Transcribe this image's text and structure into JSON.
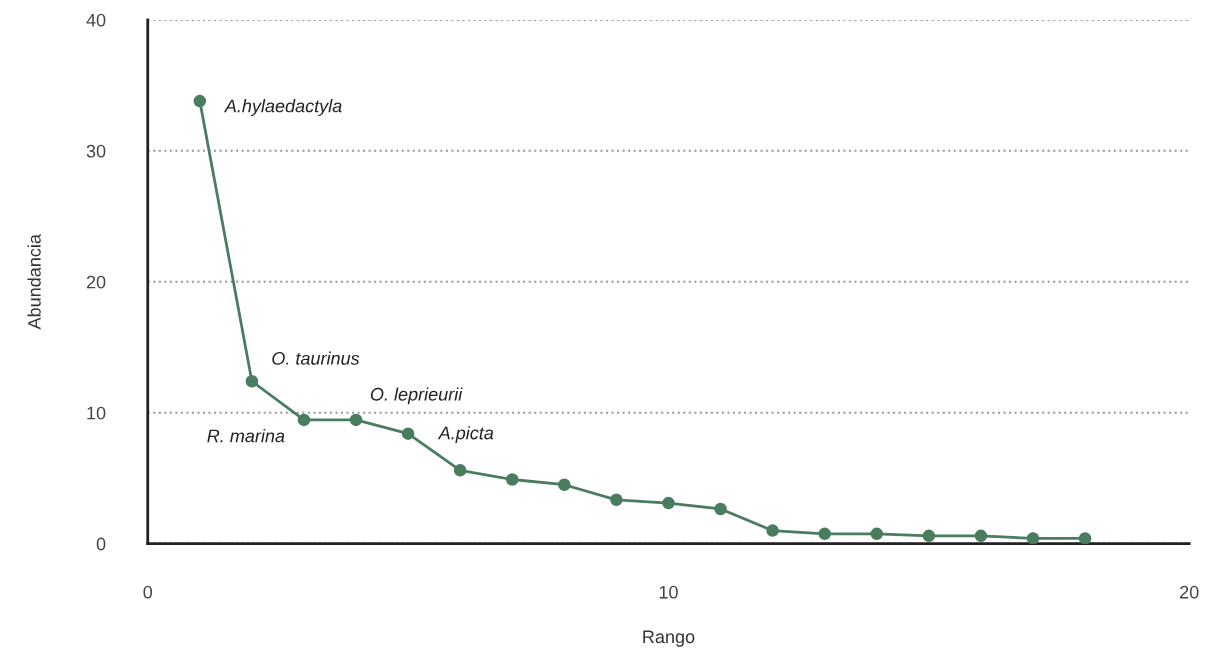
{
  "chart_data": {
    "type": "line",
    "xlabel": "Rango",
    "ylabel": "Abundancia",
    "x": [
      1,
      2,
      3,
      4,
      5,
      6,
      7,
      8,
      9,
      10,
      11,
      12,
      13,
      14,
      15,
      16,
      17,
      18
    ],
    "series": [
      {
        "color": "#4a7c5f",
        "values": [
          33.8,
          12.4,
          9.45,
          9.45,
          8.4,
          5.6,
          4.9,
          4.5,
          3.35,
          3.1,
          2.65,
          1.0,
          0.75,
          0.75,
          0.6,
          0.6,
          0.4,
          0.4
        ]
      }
    ],
    "xlim": [
      0,
      20
    ],
    "ylim": [
      0,
      40
    ],
    "xticks": [
      0,
      10,
      20
    ],
    "yticks": [
      0,
      10,
      20,
      30,
      40
    ],
    "grid": "y",
    "marker": "circle",
    "line_style": "solid",
    "legend": false,
    "annotations": [
      {
        "text": "A.hylaedactyla",
        "x": 1,
        "y": 33.8
      },
      {
        "text": "O. taurinus",
        "x": 2,
        "y": 12.4
      },
      {
        "text": "R. marina",
        "x": 3,
        "y": 9.45
      },
      {
        "text": "O. leprieurii",
        "x": 4,
        "y": 9.45
      },
      {
        "text": "A.picta",
        "x": 5,
        "y": 8.4
      }
    ]
  }
}
